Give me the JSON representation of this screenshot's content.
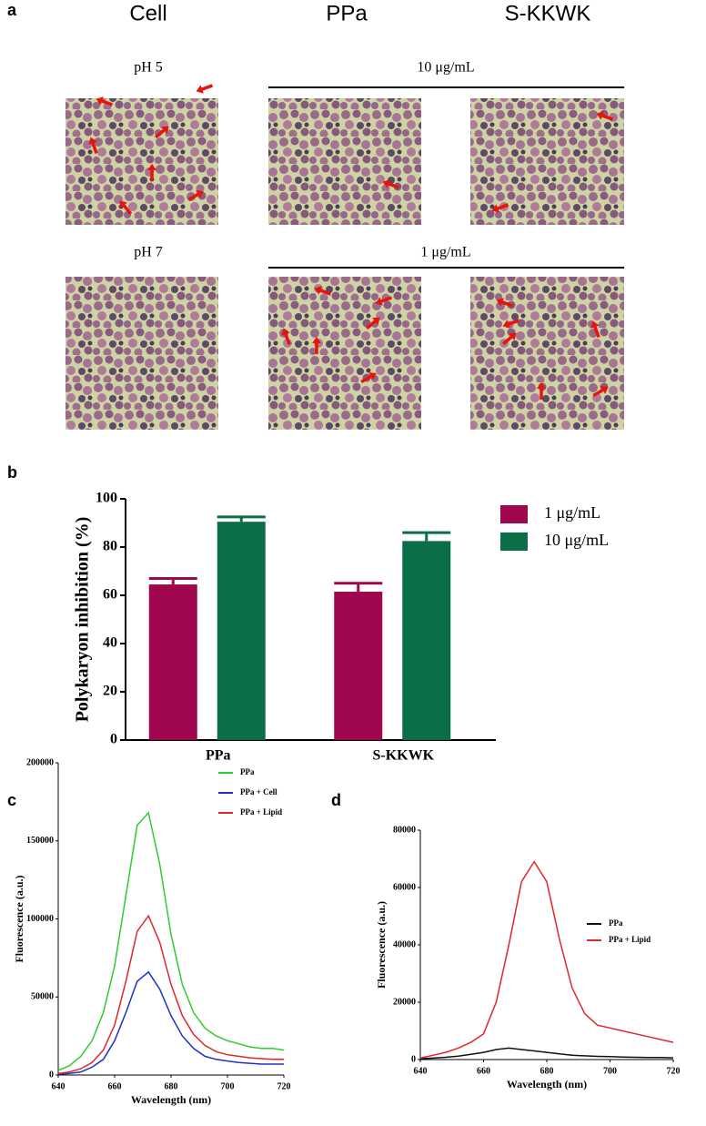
{
  "panel_labels": [
    "a",
    "b",
    "c",
    "d"
  ],
  "panel_a": {
    "column_headers": [
      "Cell",
      "PPa",
      "S-KKWK"
    ],
    "rows": [
      {
        "label": "pH 5",
        "concentration": "10 μg/mL"
      },
      {
        "label": "pH 7",
        "concentration": "1 μg/mL"
      }
    ]
  },
  "chart_data": [
    {
      "type": "bar",
      "y_label": "Polykaryon inhibition (%)",
      "categories": [
        "PPa",
        "S-KKWK"
      ],
      "ylim": [
        0,
        100
      ],
      "yticks": [
        0,
        20,
        40,
        60,
        80,
        100
      ],
      "legend": "top-right",
      "series": [
        {
          "name": "1 μg/mL",
          "color": "#a0064e",
          "values": [
            64.5,
            61.5
          ],
          "errors": [
            2.5,
            3.5
          ]
        },
        {
          "name": "10 μg/mL",
          "color": "#0a6e46",
          "values": [
            90.5,
            82.5
          ],
          "errors": [
            2,
            3.5
          ]
        }
      ]
    },
    {
      "type": "line",
      "x_label": "Wavelength (nm)",
      "y_label": "Fluorescence (a.u.)",
      "x": [
        640,
        644,
        648,
        652,
        656,
        660,
        664,
        668,
        672,
        676,
        680,
        684,
        688,
        692,
        696,
        700,
        704,
        708,
        712,
        716,
        720
      ],
      "xlim": [
        640,
        720
      ],
      "xticks": [
        640,
        660,
        680,
        700,
        720
      ],
      "ylim": [
        0,
        200000
      ],
      "yticks": [
        0,
        50000,
        100000,
        150000,
        200000
      ],
      "legend": "top-right",
      "series": [
        {
          "name": "PPa",
          "color": "#2ecc2e",
          "values": [
            3000,
            6000,
            12000,
            22000,
            40000,
            70000,
            115000,
            160000,
            168000,
            135000,
            90000,
            58000,
            40000,
            30000,
            25000,
            22000,
            20000,
            18000,
            17000,
            17000,
            16000
          ]
        },
        {
          "name": "PPa + Cell",
          "color": "#1f2fc8",
          "values": [
            500,
            1000,
            2000,
            5000,
            10000,
            22000,
            40000,
            60000,
            66000,
            55000,
            38000,
            25000,
            17000,
            12000,
            10000,
            9000,
            8000,
            7500,
            7000,
            7000,
            7000
          ]
        },
        {
          "name": "PPa + Lipid",
          "color": "#e0262a",
          "values": [
            1000,
            2000,
            4000,
            8000,
            16000,
            32000,
            60000,
            92000,
            102000,
            85000,
            58000,
            38000,
            26000,
            19000,
            15000,
            13000,
            12000,
            11000,
            10500,
            10000,
            10000
          ]
        }
      ]
    },
    {
      "type": "line",
      "x_label": "Wavelength (nm)",
      "y_label": "Fluorescence (a.u.)",
      "x": [
        640,
        644,
        648,
        652,
        656,
        660,
        664,
        668,
        672,
        676,
        680,
        684,
        688,
        692,
        696,
        700,
        704,
        708,
        712,
        716,
        720
      ],
      "xlim": [
        640,
        720
      ],
      "xticks": [
        640,
        660,
        680,
        700,
        720
      ],
      "ylim": [
        0,
        80000
      ],
      "yticks": [
        0,
        20000,
        40000,
        60000,
        80000
      ],
      "legend": "middle-right",
      "series": [
        {
          "name": "PPa",
          "color": "#111111",
          "values": [
            300,
            500,
            800,
            1200,
            1800,
            2500,
            3500,
            4000,
            3500,
            3000,
            2500,
            2000,
            1500,
            1300,
            1100,
            1000,
            900,
            800,
            700,
            700,
            600
          ]
        },
        {
          "name": "PPa + Lipid",
          "color": "#e0262a",
          "values": [
            500,
            1500,
            2500,
            4000,
            6000,
            9000,
            20000,
            40000,
            62000,
            69000,
            62000,
            42000,
            25000,
            16000,
            12000,
            11000,
            10000,
            9000,
            8000,
            7000,
            6000
          ]
        }
      ]
    }
  ]
}
